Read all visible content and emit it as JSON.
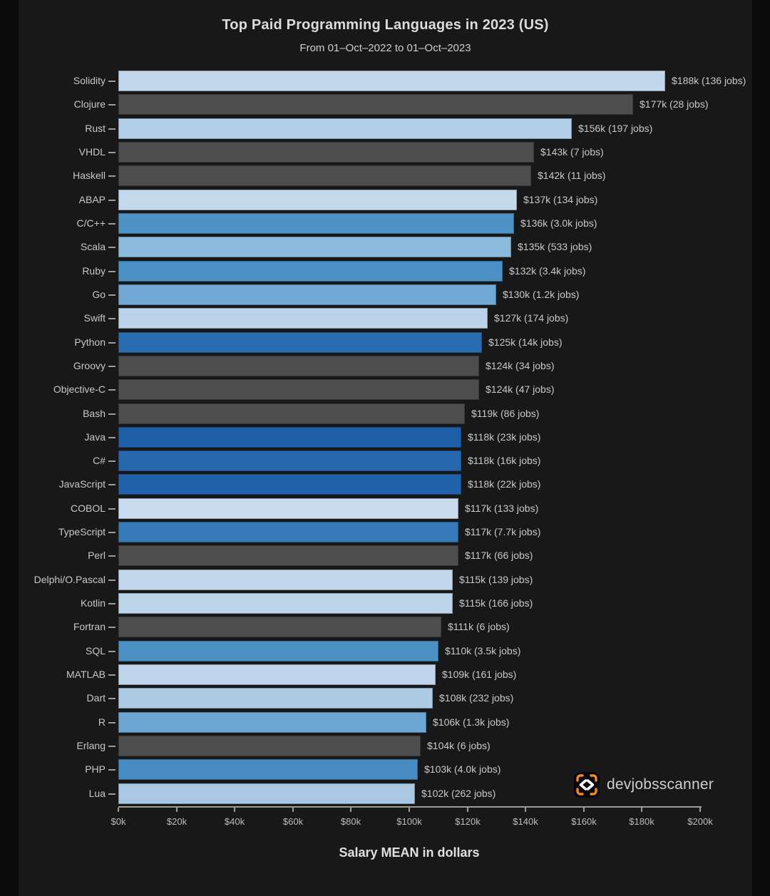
{
  "page": {
    "background": "#0b0b0b",
    "figure_background": "#181818"
  },
  "chart_data": {
    "type": "bar",
    "orientation": "horizontal",
    "title": "Top Paid Programming Languages in 2023 (US)",
    "subtitle": "From 01–Oct–2022 to 01–Oct–2023",
    "xlabel": "Salary MEAN in dollars",
    "x_axis_unit": "USD (thousands)",
    "xlim_k": [
      0,
      200
    ],
    "x_ticks": [
      "$0k",
      "$20k",
      "$40k",
      "$60k",
      "$80k",
      "$100k",
      "$120k",
      "$140k",
      "$160k",
      "$180k",
      "$200k"
    ],
    "grid": false,
    "legend": null,
    "color_rule": "bar color encodes job count: gray = very few jobs, light-to-dark blue = increasing jobs",
    "low_jobs_gray": "#4d4d4d",
    "bars": [
      {
        "language": "Solidity",
        "salary_k": 188,
        "jobs": "136 jobs",
        "label": "$188k (136 jobs)",
        "color": "#c3d7ec"
      },
      {
        "language": "Clojure",
        "salary_k": 177,
        "jobs": "28 jobs",
        "label": "$177k (28 jobs)",
        "color": "#4d4d4d"
      },
      {
        "language": "Rust",
        "salary_k": 156,
        "jobs": "197 jobs",
        "label": "$156k (197 jobs)",
        "color": "#b3cfe7"
      },
      {
        "language": "VHDL",
        "salary_k": 143,
        "jobs": "7 jobs",
        "label": "$143k (7 jobs)",
        "color": "#4d4d4d"
      },
      {
        "language": "Haskell",
        "salary_k": 142,
        "jobs": "11 jobs",
        "label": "$142k (11 jobs)",
        "color": "#4d4d4d"
      },
      {
        "language": "ABAP",
        "salary_k": 137,
        "jobs": "134 jobs",
        "label": "$137k (134 jobs)",
        "color": "#c4d8ec"
      },
      {
        "language": "C/C++",
        "salary_k": 136,
        "jobs": "3.0k jobs",
        "label": "$136k (3.0k jobs)",
        "color": "#4e92c6"
      },
      {
        "language": "Scala",
        "salary_k": 135,
        "jobs": "533 jobs",
        "label": "$135k (533 jobs)",
        "color": "#8cbcdd"
      },
      {
        "language": "Ruby",
        "salary_k": 132,
        "jobs": "3.4k jobs",
        "label": "$132k (3.4k jobs)",
        "color": "#4b90c4"
      },
      {
        "language": "Go",
        "salary_k": 130,
        "jobs": "1.2k jobs",
        "label": "$130k (1.2k jobs)",
        "color": "#70a9d6"
      },
      {
        "language": "Swift",
        "salary_k": 127,
        "jobs": "174 jobs",
        "label": "$127k (174 jobs)",
        "color": "#bad3ea"
      },
      {
        "language": "Python",
        "salary_k": 125,
        "jobs": "14k jobs",
        "label": "$125k (14k jobs)",
        "color": "#2a6cb0"
      },
      {
        "language": "Groovy",
        "salary_k": 124,
        "jobs": "34 jobs",
        "label": "$124k (34 jobs)",
        "color": "#4d4d4d"
      },
      {
        "language": "Objective-C",
        "salary_k": 124,
        "jobs": "47 jobs",
        "label": "$124k (47 jobs)",
        "color": "#4d4d4d"
      },
      {
        "language": "Bash",
        "salary_k": 119,
        "jobs": "86 jobs",
        "label": "$119k (86 jobs)",
        "color": "#4d4d4d"
      },
      {
        "language": "Java",
        "salary_k": 118,
        "jobs": "23k jobs",
        "label": "$118k (23k jobs)",
        "color": "#1f5fa8"
      },
      {
        "language": "C#",
        "salary_k": 118,
        "jobs": "16k jobs",
        "label": "$118k (16k jobs)",
        "color": "#2767ad"
      },
      {
        "language": "JavaScript",
        "salary_k": 118,
        "jobs": "22k jobs",
        "label": "$118k (22k jobs)",
        "color": "#2161a9"
      },
      {
        "language": "COBOL",
        "salary_k": 117,
        "jobs": "133 jobs",
        "label": "$117k (133 jobs)",
        "color": "#c9dcef"
      },
      {
        "language": "TypeScript",
        "salary_k": 117,
        "jobs": "7.7k jobs",
        "label": "$117k (7.7k jobs)",
        "color": "#3579b8"
      },
      {
        "language": "Perl",
        "salary_k": 117,
        "jobs": "66 jobs",
        "label": "$117k (66 jobs)",
        "color": "#4d4d4d"
      },
      {
        "language": "Delphi/O.Pascal",
        "salary_k": 115,
        "jobs": "139 jobs",
        "label": "$115k (139 jobs)",
        "color": "#c2d7eb"
      },
      {
        "language": "Kotlin",
        "salary_k": 115,
        "jobs": "166 jobs",
        "label": "$115k (166 jobs)",
        "color": "#bcd4ea"
      },
      {
        "language": "Fortran",
        "salary_k": 111,
        "jobs": "6 jobs",
        "label": "$111k (6 jobs)",
        "color": "#4d4d4d"
      },
      {
        "language": "SQL",
        "salary_k": 110,
        "jobs": "3.5k jobs",
        "label": "$110k (3.5k jobs)",
        "color": "#4a90c4"
      },
      {
        "language": "MATLAB",
        "salary_k": 109,
        "jobs": "161 jobs",
        "label": "$109k (161 jobs)",
        "color": "#bed5eb"
      },
      {
        "language": "Dart",
        "salary_k": 108,
        "jobs": "232 jobs",
        "label": "$108k (232 jobs)",
        "color": "#aecbe5"
      },
      {
        "language": "R",
        "salary_k": 106,
        "jobs": "1.3k jobs",
        "label": "$106k (1.3k jobs)",
        "color": "#6ca7d4"
      },
      {
        "language": "Erlang",
        "salary_k": 104,
        "jobs": "6 jobs",
        "label": "$104k (6 jobs)",
        "color": "#4d4d4d"
      },
      {
        "language": "PHP",
        "salary_k": 103,
        "jobs": "4.0k jobs",
        "label": "$103k (4.0k jobs)",
        "color": "#478cc2"
      },
      {
        "language": "Lua",
        "salary_k": 102,
        "jobs": "262 jobs",
        "label": "$102k (262 jobs)",
        "color": "#a9c8e3"
      }
    ]
  },
  "branding": {
    "name": "devjobsscanner",
    "accent": "#f28a1c",
    "icon": "code-brackets-icon"
  }
}
